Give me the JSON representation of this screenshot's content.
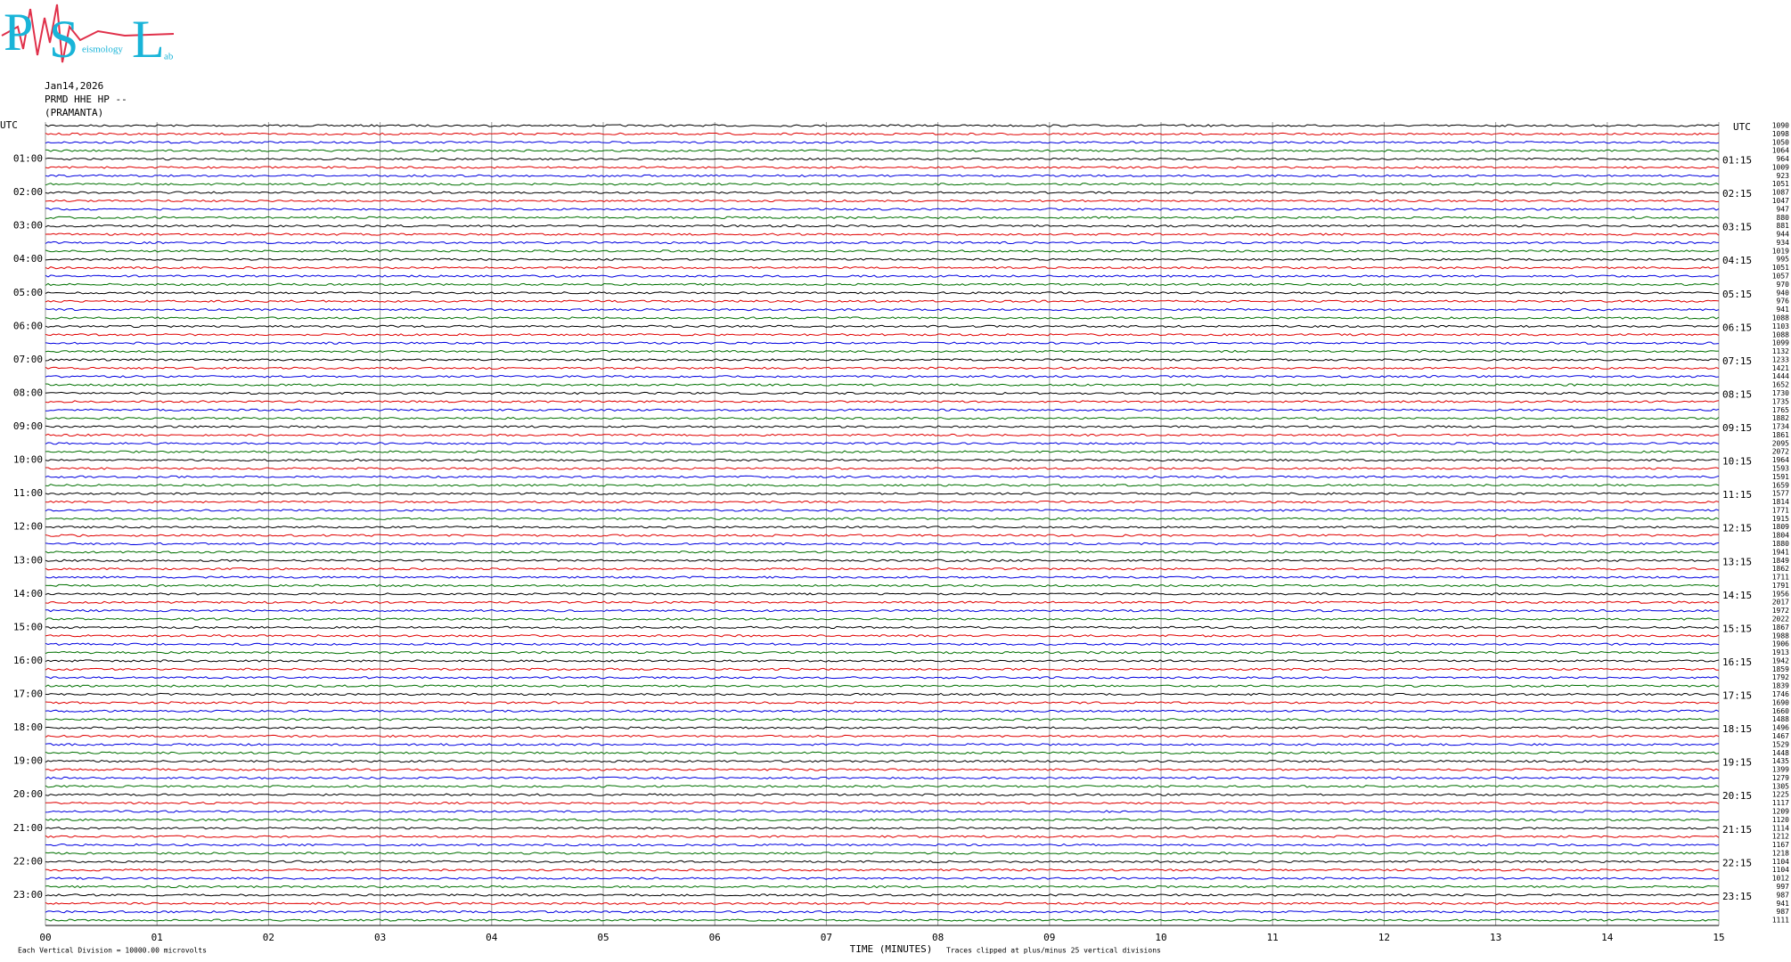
{
  "chart_data": {
    "type": "helicorder",
    "logo": {
      "letters": [
        "P",
        "S",
        "L"
      ],
      "small": [
        "eismology",
        "ab"
      ]
    },
    "header": [
      "Jan14,2026",
      "PRMD HHE HP --",
      "(PRAMANTA)"
    ],
    "left_title": "UTC",
    "right_title": "UTC",
    "left_labels": [
      "01:00",
      "02:00",
      "03:00",
      "04:00",
      "05:00",
      "06:00",
      "07:00",
      "08:00",
      "09:00",
      "10:00",
      "11:00",
      "12:00",
      "13:00",
      "14:00",
      "15:00",
      "16:00",
      "17:00",
      "18:00",
      "19:00",
      "20:00",
      "21:00",
      "22:00",
      "23:00"
    ],
    "right_labels": [
      "01:15",
      "02:15",
      "03:15",
      "04:15",
      "05:15",
      "06:15",
      "07:15",
      "08:15",
      "09:15",
      "10:15",
      "11:15",
      "12:15",
      "13:15",
      "14:15",
      "15:15",
      "16:15",
      "17:15",
      "18:15",
      "19:15",
      "20:15",
      "21:15",
      "22:15",
      "23:15"
    ],
    "trace_colors": [
      "#000000",
      "#e00000",
      "#0000e0",
      "#007000"
    ],
    "trace_values": [
      1090,
      1098,
      1050,
      1064,
      964,
      1009,
      923,
      1051,
      1087,
      1047,
      947,
      880,
      881,
      944,
      934,
      1019,
      995,
      1051,
      1057,
      970,
      940,
      976,
      941,
      1088,
      1103,
      1088,
      1099,
      1132,
      1233,
      1421,
      1444,
      1652,
      1730,
      1735,
      1765,
      1882,
      1734,
      1861,
      2095,
      2072,
      1964,
      1593,
      1591,
      1659,
      1577,
      1814,
      1771,
      1915,
      1809,
      1804,
      1880,
      1941,
      1849,
      1862,
      1711,
      1791,
      1956,
      2017,
      1972,
      2022,
      1867,
      1988,
      1906,
      1913,
      1942,
      1859,
      1792,
      1839,
      1746,
      1690,
      1660,
      1488,
      1496,
      1467,
      1529,
      1448,
      1435,
      1399,
      1279,
      1305,
      1225,
      1117,
      1209,
      1120,
      1114,
      1212,
      1167,
      1218,
      1104,
      1104,
      1012,
      997,
      987,
      941,
      987,
      1111
    ],
    "x_categories": [
      "00",
      "01",
      "02",
      "03",
      "04",
      "05",
      "06",
      "07",
      "08",
      "09",
      "10",
      "11",
      "12",
      "13",
      "14",
      "15"
    ],
    "x_label": "TIME (MINUTES)",
    "footer_left": "Each Vertical Division = 10000.00 microvolts",
    "footer_right": "Traces clipped at plus/minus 25 vertical divisions"
  }
}
